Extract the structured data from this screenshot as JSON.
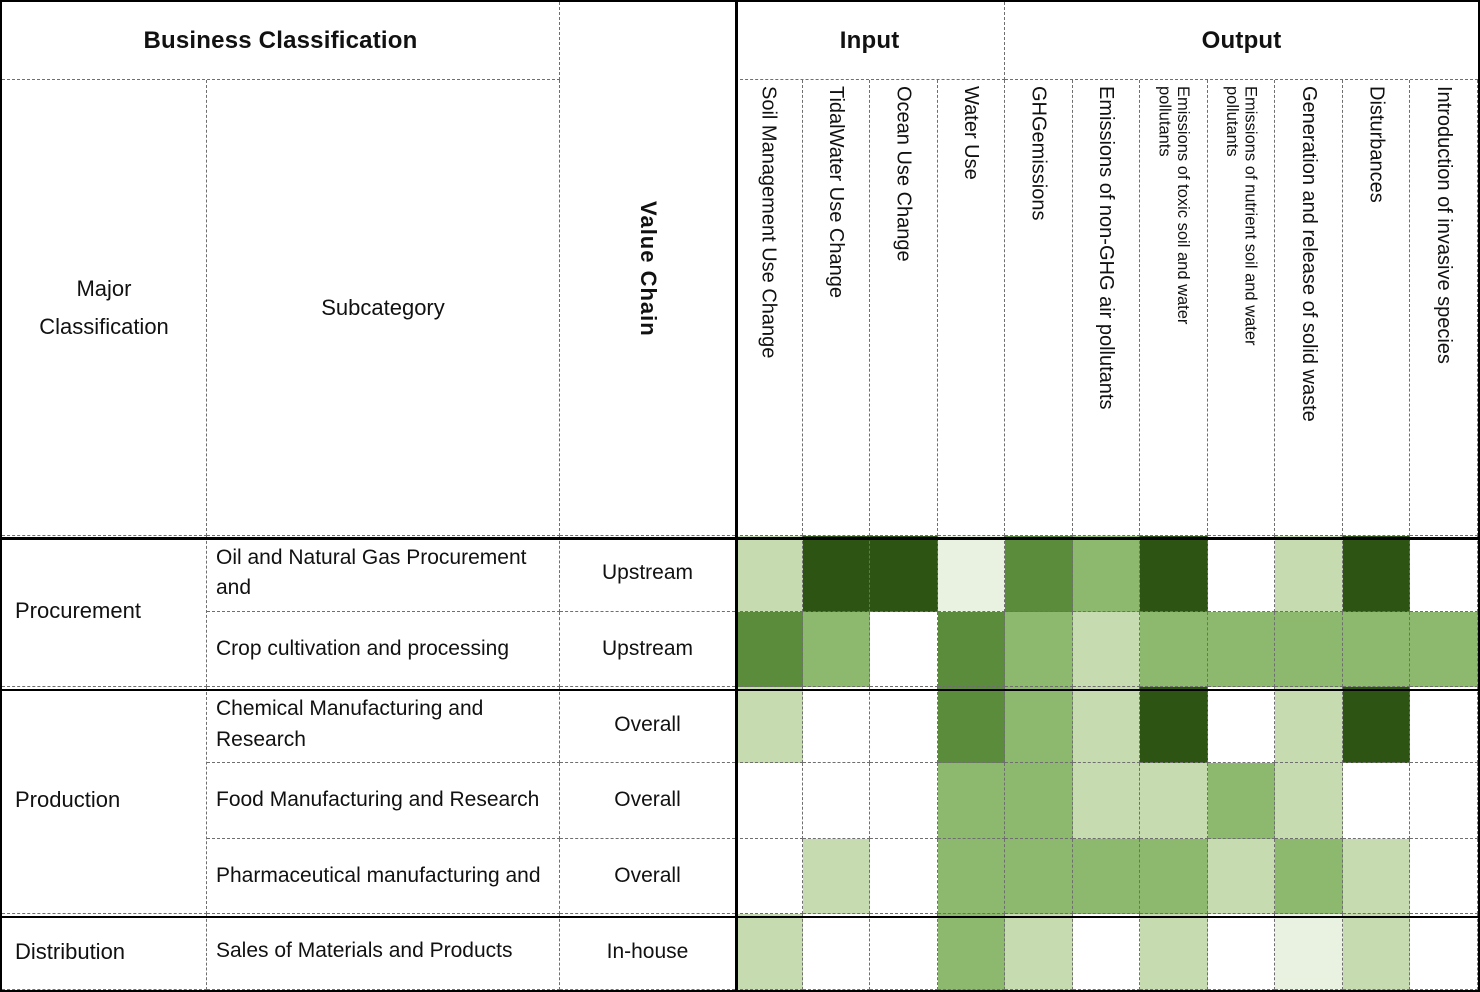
{
  "header": {
    "business_classification": "Business Classification",
    "input": "Input",
    "output": "Output",
    "major_classification": "Major Classification",
    "subcategory": "Subcategory",
    "value_chain": "Value Chain"
  },
  "chart_data": {
    "type": "heatmap",
    "column_groups": [
      {
        "label": "Input",
        "columns": [
          0,
          1,
          2,
          3
        ]
      },
      {
        "label": "Output",
        "columns": [
          4,
          5,
          6,
          7,
          8,
          9,
          10
        ]
      }
    ],
    "columns": [
      "Soil Management Use Change",
      "TidalWater Use Change",
      "Ocean Use Change",
      "Water Use",
      "GHGemissions",
      "Emissions of non-GHG air pollutants",
      "Emissions of toxic soil and water\npollutants",
      "Emissions of nutrient soil and water\npollutants",
      "Generation and release of solid waste",
      "Disturbances",
      "Introduction of invasive species"
    ],
    "rows": [
      {
        "major": "Procurement",
        "subcategory": "Oil and Natural Gas Procurement and",
        "value_chain": "Upstream",
        "levels": [
          2,
          5,
          5,
          1,
          4,
          3,
          5,
          0,
          2,
          5,
          0
        ]
      },
      {
        "major": "Procurement",
        "subcategory": "Crop cultivation and processing",
        "value_chain": "Upstream",
        "levels": [
          4,
          3,
          0,
          4,
          3,
          2,
          3,
          3,
          3,
          3,
          3
        ]
      },
      {
        "major": "Production",
        "subcategory": "Chemical Manufacturing and Research",
        "value_chain": "Overall",
        "levels": [
          2,
          0,
          0,
          4,
          3,
          2,
          5,
          0,
          2,
          5,
          0
        ]
      },
      {
        "major": "Production",
        "subcategory": "Food Manufacturing and Research",
        "value_chain": "Overall",
        "levels": [
          0,
          0,
          0,
          3,
          3,
          2,
          2,
          3,
          2,
          0,
          0
        ]
      },
      {
        "major": "Production",
        "subcategory": "Pharmaceutical manufacturing and",
        "value_chain": "Overall",
        "levels": [
          0,
          2,
          0,
          3,
          3,
          3,
          3,
          2,
          3,
          2,
          0
        ]
      },
      {
        "major": "Distribution",
        "subcategory": "Sales of Materials and Products",
        "value_chain": "In-house",
        "levels": [
          2,
          0,
          0,
          3,
          2,
          0,
          2,
          0,
          1,
          2,
          0
        ]
      }
    ],
    "scale": {
      "0": "#ffffff",
      "1": "#e9f2e0",
      "2": "#c6dcb0",
      "3": "#8cb96e",
      "4": "#5a8c3c",
      "5": "#2e5414"
    },
    "scale_meaning": "white = no shading / least impact, darkest green = greatest impact"
  }
}
